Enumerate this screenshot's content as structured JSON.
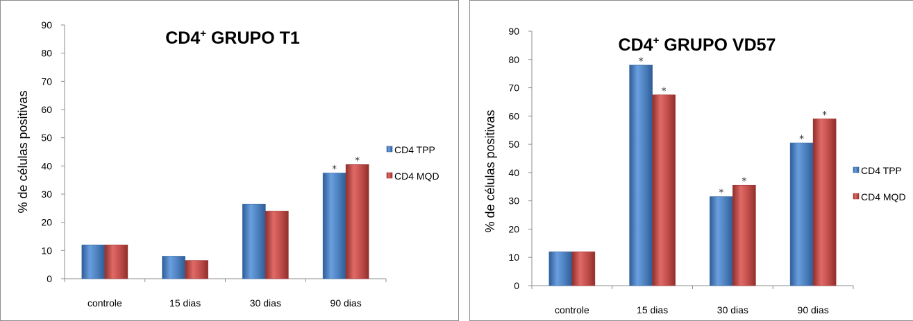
{
  "chart_data": [
    {
      "type": "bar",
      "title_main": "CD4",
      "title_sup": "+",
      "title_rest": " GRUPO T1",
      "ylabel": "% de células positivas",
      "ylim": [
        0,
        90
      ],
      "yticks": [
        "0",
        "10",
        "20",
        "30",
        "40",
        "50",
        "60",
        "70",
        "80",
        "90"
      ],
      "categories": [
        "controle",
        "15 dias",
        "30 dias",
        "90 dias"
      ],
      "series": [
        {
          "name": "CD4 TPP",
          "values": [
            12,
            8,
            26.5,
            37.5
          ],
          "significant": [
            false,
            false,
            false,
            true
          ]
        },
        {
          "name": "CD4 MQD",
          "values": [
            12,
            6.5,
            24,
            40.5
          ],
          "significant": [
            false,
            false,
            false,
            true
          ]
        }
      ],
      "marker": "*",
      "legend_position": "right",
      "colors": [
        "#4a7ebb",
        "#be4b48"
      ]
    },
    {
      "type": "bar",
      "title_main": "CD4",
      "title_sup": "+",
      "title_rest": " GRUPO VD57",
      "ylabel": "% de células positivas",
      "ylim": [
        0,
        90
      ],
      "yticks": [
        "0",
        "10",
        "20",
        "30",
        "40",
        "50",
        "60",
        "70",
        "80",
        "90"
      ],
      "categories": [
        "controle",
        "15 dias",
        "30 dias",
        "90 dias"
      ],
      "series": [
        {
          "name": "CD4 TPP",
          "values": [
            12,
            78,
            31.5,
            50.5
          ],
          "significant": [
            false,
            true,
            true,
            true
          ]
        },
        {
          "name": "CD4 MQD",
          "values": [
            12,
            67.5,
            35.5,
            59
          ],
          "significant": [
            false,
            true,
            true,
            true
          ]
        }
      ],
      "marker": "*",
      "legend_position": "right",
      "colors": [
        "#4a7ebb",
        "#be4b48"
      ]
    }
  ]
}
